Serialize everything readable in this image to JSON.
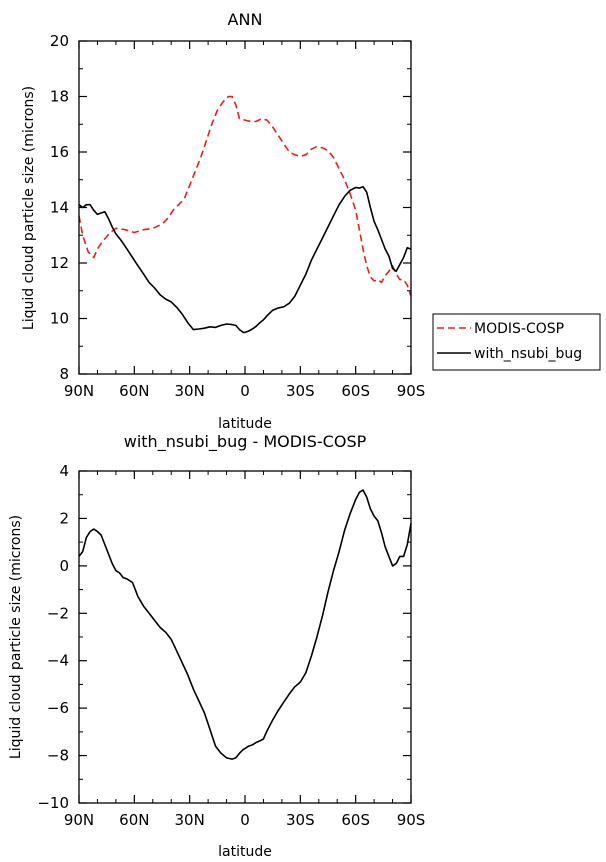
{
  "chart_data": [
    {
      "type": "line",
      "title": "ANN",
      "xlabel": "latitude",
      "ylabel": "Liquid cloud particle size (microns)",
      "xlim": [
        90,
        -90
      ],
      "ylim": [
        8,
        20
      ],
      "x_ticks": [
        90,
        60,
        30,
        0,
        -30,
        -60,
        -90
      ],
      "x_tick_labels": [
        "90N",
        "60N",
        "30N",
        "0",
        "30S",
        "60S",
        "90S"
      ],
      "y_ticks": [
        8,
        10,
        12,
        14,
        16,
        18,
        20
      ],
      "y_tick_labels": [
        "8",
        "10",
        "12",
        "14",
        "16",
        "18",
        "20"
      ],
      "legend": {
        "position": "right",
        "entries": [
          "MODIS-COSP",
          "with_nsubi_bug"
        ]
      },
      "series": [
        {
          "name": "MODIS-COSP",
          "color": "#e8201e",
          "style": "dashed",
          "x": [
            90,
            88,
            85,
            82,
            80,
            77,
            73,
            70,
            65,
            60,
            55,
            50,
            45,
            42,
            39,
            36,
            33,
            30,
            27,
            24,
            21,
            18,
            15,
            12,
            9,
            7,
            5,
            3,
            0,
            -3,
            -6,
            -9,
            -12,
            -15,
            -18,
            -21,
            -24,
            -27,
            -30,
            -33,
            -36,
            -39,
            -42,
            -45,
            -48,
            -51,
            -54,
            -57,
            -60,
            -62,
            -64,
            -66,
            -68,
            -70,
            -72,
            -74,
            -76,
            -78,
            -80,
            -82,
            -84,
            -86,
            -88,
            -90
          ],
          "values": [
            13.7,
            13.0,
            12.4,
            12.2,
            12.5,
            12.8,
            13.1,
            13.25,
            13.2,
            13.1,
            13.2,
            13.25,
            13.4,
            13.6,
            13.9,
            14.1,
            14.3,
            14.8,
            15.3,
            15.8,
            16.4,
            17.0,
            17.5,
            17.8,
            18.0,
            18.0,
            17.7,
            17.2,
            17.15,
            17.1,
            17.1,
            17.2,
            17.15,
            16.9,
            16.6,
            16.3,
            16.0,
            15.9,
            15.85,
            15.9,
            16.1,
            16.2,
            16.15,
            16.05,
            15.8,
            15.4,
            15.0,
            14.5,
            13.9,
            13.2,
            12.5,
            11.9,
            11.5,
            11.35,
            11.4,
            11.3,
            11.55,
            11.7,
            11.9,
            11.6,
            11.4,
            11.4,
            11.2,
            10.8
          ]
        },
        {
          "name": "with_nsubi_bug",
          "color": "#000000",
          "style": "solid",
          "x": [
            90,
            88,
            86,
            84,
            82,
            80,
            78,
            76,
            74,
            72,
            70,
            67,
            64,
            61,
            58,
            55,
            52,
            49,
            46,
            43,
            40,
            37,
            34,
            31,
            28,
            25,
            22,
            19,
            16,
            13,
            10,
            7,
            5,
            3,
            1,
            0,
            -2,
            -4,
            -6,
            -8,
            -10,
            -12,
            -15,
            -18,
            -21,
            -24,
            -27,
            -30,
            -33,
            -36,
            -39,
            -42,
            -45,
            -48,
            -51,
            -54,
            -57,
            -60,
            -62,
            -64,
            -66,
            -68,
            -70,
            -72,
            -74,
            -76,
            -78,
            -80,
            -82,
            -84,
            -86,
            -88,
            -90
          ],
          "values": [
            14.1,
            14.0,
            14.1,
            14.1,
            13.9,
            13.75,
            13.8,
            13.85,
            13.6,
            13.3,
            13.05,
            12.8,
            12.5,
            12.2,
            11.9,
            11.6,
            11.3,
            11.1,
            10.85,
            10.7,
            10.6,
            10.4,
            10.15,
            9.85,
            9.6,
            9.62,
            9.65,
            9.7,
            9.68,
            9.75,
            9.8,
            9.78,
            9.75,
            9.6,
            9.5,
            9.5,
            9.55,
            9.62,
            9.72,
            9.85,
            9.95,
            10.1,
            10.3,
            10.38,
            10.42,
            10.55,
            10.8,
            11.2,
            11.6,
            12.1,
            12.5,
            12.9,
            13.3,
            13.7,
            14.1,
            14.4,
            14.62,
            14.72,
            14.7,
            14.75,
            14.55,
            14.0,
            13.5,
            13.2,
            12.85,
            12.5,
            12.25,
            11.8,
            11.7,
            11.95,
            12.2,
            12.55,
            12.5
          ]
        }
      ]
    },
    {
      "type": "line",
      "title": "with_nsubi_bug - MODIS-COSP",
      "xlabel": "latitude",
      "ylabel": "Liquid cloud particle size (microns)",
      "xlim": [
        90,
        -90
      ],
      "ylim": [
        -10,
        4
      ],
      "x_ticks": [
        90,
        60,
        30,
        0,
        -30,
        -60,
        -90
      ],
      "x_tick_labels": [
        "90N",
        "60N",
        "30N",
        "0",
        "30S",
        "60S",
        "90S"
      ],
      "y_ticks": [
        -10,
        -8,
        -6,
        -4,
        -2,
        0,
        2,
        4
      ],
      "y_tick_labels": [
        "−10",
        "−8",
        "−6",
        "−4",
        "−2",
        "0",
        "2",
        "4"
      ],
      "series": [
        {
          "name": "with_nsubi_bug - MODIS-COSP",
          "color": "#000000",
          "style": "solid",
          "x": [
            90,
            88,
            86,
            84,
            82,
            80,
            78,
            76,
            74,
            72,
            70,
            68,
            66,
            64,
            61,
            58,
            55,
            52,
            49,
            46,
            43,
            40,
            37,
            34,
            31,
            28,
            25,
            22,
            19,
            16,
            13,
            10,
            7,
            5,
            3,
            1,
            0,
            -2,
            -4,
            -6,
            -8,
            -10,
            -12,
            -15,
            -18,
            -21,
            -24,
            -27,
            -30,
            -33,
            -36,
            -39,
            -42,
            -45,
            -48,
            -51,
            -54,
            -57,
            -60,
            -62,
            -64,
            -66,
            -68,
            -70,
            -72,
            -74,
            -76,
            -78,
            -80,
            -82,
            -84,
            -86,
            -88,
            -90
          ],
          "values": [
            0.4,
            0.6,
            1.2,
            1.45,
            1.55,
            1.45,
            1.3,
            0.9,
            0.5,
            0.1,
            -0.2,
            -0.3,
            -0.5,
            -0.55,
            -0.7,
            -1.3,
            -1.7,
            -2.0,
            -2.3,
            -2.6,
            -2.8,
            -3.1,
            -3.6,
            -4.1,
            -4.6,
            -5.2,
            -5.7,
            -6.2,
            -6.9,
            -7.6,
            -7.9,
            -8.1,
            -8.15,
            -8.1,
            -7.9,
            -7.75,
            -7.7,
            -7.6,
            -7.55,
            -7.45,
            -7.38,
            -7.3,
            -6.95,
            -6.5,
            -6.1,
            -5.75,
            -5.4,
            -5.1,
            -4.9,
            -4.5,
            -3.8,
            -3.0,
            -2.1,
            -1.1,
            -0.2,
            0.6,
            1.5,
            2.2,
            2.8,
            3.1,
            3.2,
            2.9,
            2.4,
            2.1,
            1.9,
            1.4,
            0.8,
            0.4,
            0.0,
            0.1,
            0.4,
            0.4,
            0.9,
            1.8
          ]
        }
      ]
    }
  ]
}
